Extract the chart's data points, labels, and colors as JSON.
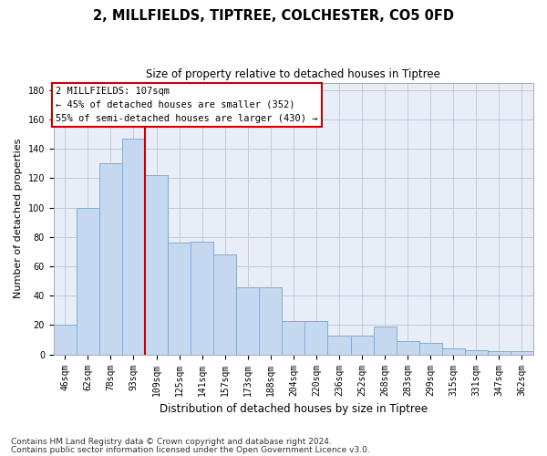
{
  "title1": "2, MILLFIELDS, TIPTREE, COLCHESTER, CO5 0FD",
  "title2": "Size of property relative to detached houses in Tiptree",
  "xlabel": "Distribution of detached houses by size in Tiptree",
  "ylabel": "Number of detached properties",
  "categories": [
    "46sqm",
    "62sqm",
    "78sqm",
    "93sqm",
    "109sqm",
    "125sqm",
    "141sqm",
    "157sqm",
    "173sqm",
    "188sqm",
    "204sqm",
    "220sqm",
    "236sqm",
    "252sqm",
    "268sqm",
    "283sqm",
    "299sqm",
    "315sqm",
    "331sqm",
    "347sqm",
    "362sqm"
  ],
  "bar_vals": [
    20,
    100,
    130,
    147,
    122,
    76,
    77,
    68,
    46,
    46,
    23,
    23,
    13,
    13,
    19,
    9,
    8,
    4,
    3,
    2,
    2
  ],
  "bar_color": "#c5d8f0",
  "bar_edge_color": "#7bafd4",
  "vline_pos": 3.5,
  "vline_color": "#cc0000",
  "ylim": [
    0,
    185
  ],
  "yticks": [
    0,
    20,
    40,
    60,
    80,
    100,
    120,
    140,
    160,
    180
  ],
  "annotation_text": "2 MILLFIELDS: 107sqm\n← 45% of detached houses are smaller (352)\n55% of semi-detached houses are larger (430) →",
  "footnote1": "Contains HM Land Registry data © Crown copyright and database right 2024.",
  "footnote2": "Contains public sector information licensed under the Open Government Licence v3.0.",
  "bg_color": "#e8eef8",
  "title1_fontsize": 10.5,
  "title2_fontsize": 8.5,
  "ylabel_fontsize": 8,
  "xlabel_fontsize": 8.5,
  "tick_fontsize": 7,
  "annot_fontsize": 7.5,
  "footnote_fontsize": 6.5
}
